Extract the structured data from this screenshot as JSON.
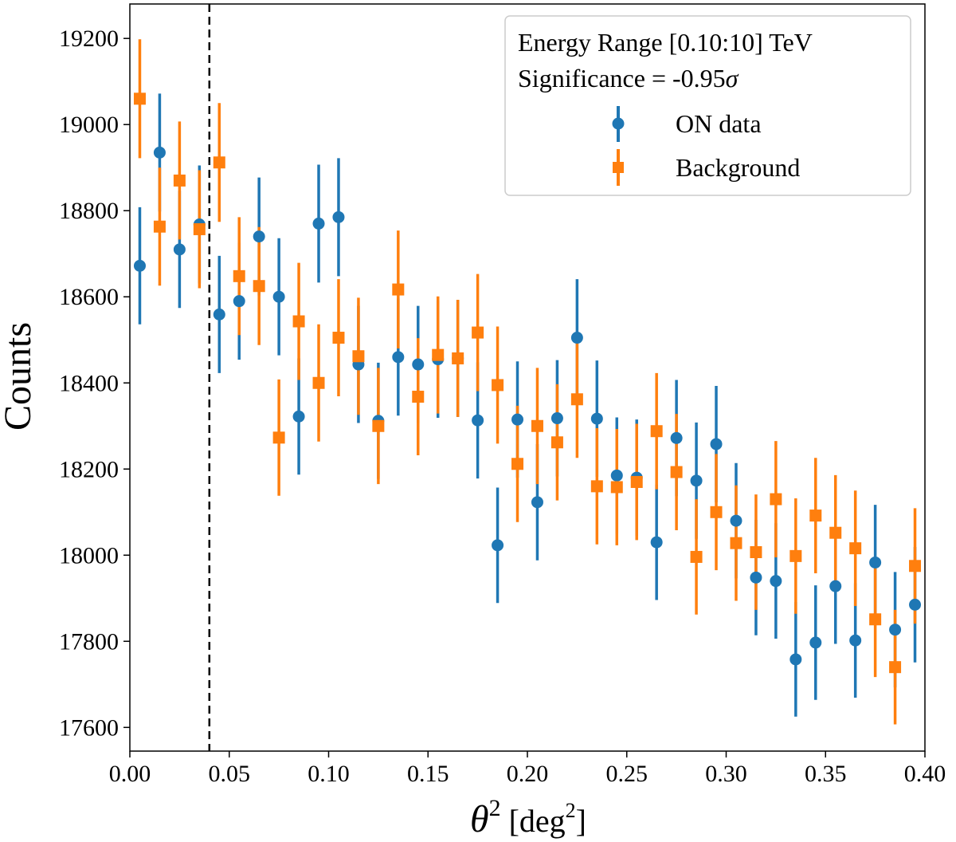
{
  "chart_data": {
    "type": "scatter",
    "title": "",
    "xlabel_symbol": "θ",
    "xlabel_exp": "2",
    "xlabel_unit_open": " [deg",
    "xlabel_unit_exp": "2",
    "xlabel_unit_close": "]",
    "ylabel": "Counts",
    "xlim": [
      0.0,
      0.4
    ],
    "ylim": [
      17545,
      19280
    ],
    "xticks": [
      0.0,
      0.05,
      0.1,
      0.15,
      0.2,
      0.25,
      0.3,
      0.35,
      0.4
    ],
    "xtick_labels": [
      "0.00",
      "0.05",
      "0.10",
      "0.15",
      "0.20",
      "0.25",
      "0.30",
      "0.35",
      "0.40"
    ],
    "yticks": [
      17600,
      17800,
      18000,
      18200,
      18400,
      18600,
      18800,
      19000,
      19200
    ],
    "ytick_labels": [
      "17600",
      "17800",
      "18000",
      "18200",
      "18400",
      "18600",
      "18800",
      "19000",
      "19200"
    ],
    "cut_line_x": 0.04,
    "legend": {
      "position": "top-right",
      "line1": "Energy Range [0.10:10] TeV",
      "line2_prefix": "Significance = -0.95",
      "line2_symbol": "σ"
    },
    "series": [
      {
        "name": "ON data",
        "marker": "circle",
        "color": "#1f77b4",
        "x": [
          0.005,
          0.015,
          0.025,
          0.035,
          0.045,
          0.055,
          0.065,
          0.075,
          0.085,
          0.095,
          0.105,
          0.115,
          0.125,
          0.135,
          0.145,
          0.155,
          0.165,
          0.175,
          0.185,
          0.195,
          0.205,
          0.215,
          0.225,
          0.235,
          0.245,
          0.255,
          0.265,
          0.275,
          0.285,
          0.295,
          0.305,
          0.315,
          0.325,
          0.335,
          0.345,
          0.355,
          0.365,
          0.375,
          0.385,
          0.395
        ],
        "values": [
          18672,
          18935,
          18710,
          18768,
          18559,
          18590,
          18740,
          18600,
          18322,
          18770,
          18785,
          18443,
          18312,
          18460,
          18443,
          18455,
          18457,
          18313,
          18023,
          18315,
          18123,
          18318,
          18505,
          18317,
          18185,
          18180,
          18030,
          18272,
          18173,
          18258,
          18080,
          17948,
          17940,
          17758,
          17797,
          17928,
          17802,
          17983,
          17827,
          17885
        ],
        "errors": [
          136,
          137,
          136,
          137,
          136,
          136,
          137,
          136,
          135,
          137,
          137,
          136,
          135,
          136,
          136,
          136,
          136,
          135,
          134,
          135,
          135,
          135,
          136,
          135,
          135,
          135,
          134,
          135,
          135,
          135,
          134,
          134,
          134,
          133,
          133,
          134,
          133,
          134,
          134,
          134
        ]
      },
      {
        "name": "Background",
        "marker": "square",
        "color": "#ff7f0e",
        "x": [
          0.005,
          0.015,
          0.025,
          0.035,
          0.045,
          0.055,
          0.065,
          0.075,
          0.085,
          0.095,
          0.105,
          0.115,
          0.125,
          0.135,
          0.145,
          0.155,
          0.165,
          0.175,
          0.185,
          0.195,
          0.205,
          0.215,
          0.225,
          0.235,
          0.245,
          0.255,
          0.265,
          0.275,
          0.285,
          0.295,
          0.305,
          0.315,
          0.325,
          0.335,
          0.345,
          0.355,
          0.365,
          0.375,
          0.385,
          0.395
        ],
        "values": [
          19060,
          18763,
          18870,
          18757,
          18912,
          18648,
          18625,
          18273,
          18543,
          18400,
          18505,
          18462,
          18300,
          18617,
          18368,
          18465,
          18457,
          18517,
          18395,
          18212,
          18300,
          18262,
          18362,
          18160,
          18158,
          18170,
          18288,
          18193,
          17996,
          18100,
          18028,
          18007,
          18130,
          17998,
          18092,
          18052,
          18016,
          17851,
          17740,
          17975
        ],
        "errors": [
          138,
          137,
          137,
          137,
          138,
          137,
          137,
          135,
          136,
          136,
          136,
          136,
          135,
          137,
          136,
          136,
          136,
          136,
          136,
          135,
          135,
          135,
          136,
          135,
          135,
          135,
          135,
          135,
          134,
          135,
          134,
          134,
          135,
          134,
          134,
          134,
          134,
          134,
          133,
          134
        ]
      }
    ]
  }
}
